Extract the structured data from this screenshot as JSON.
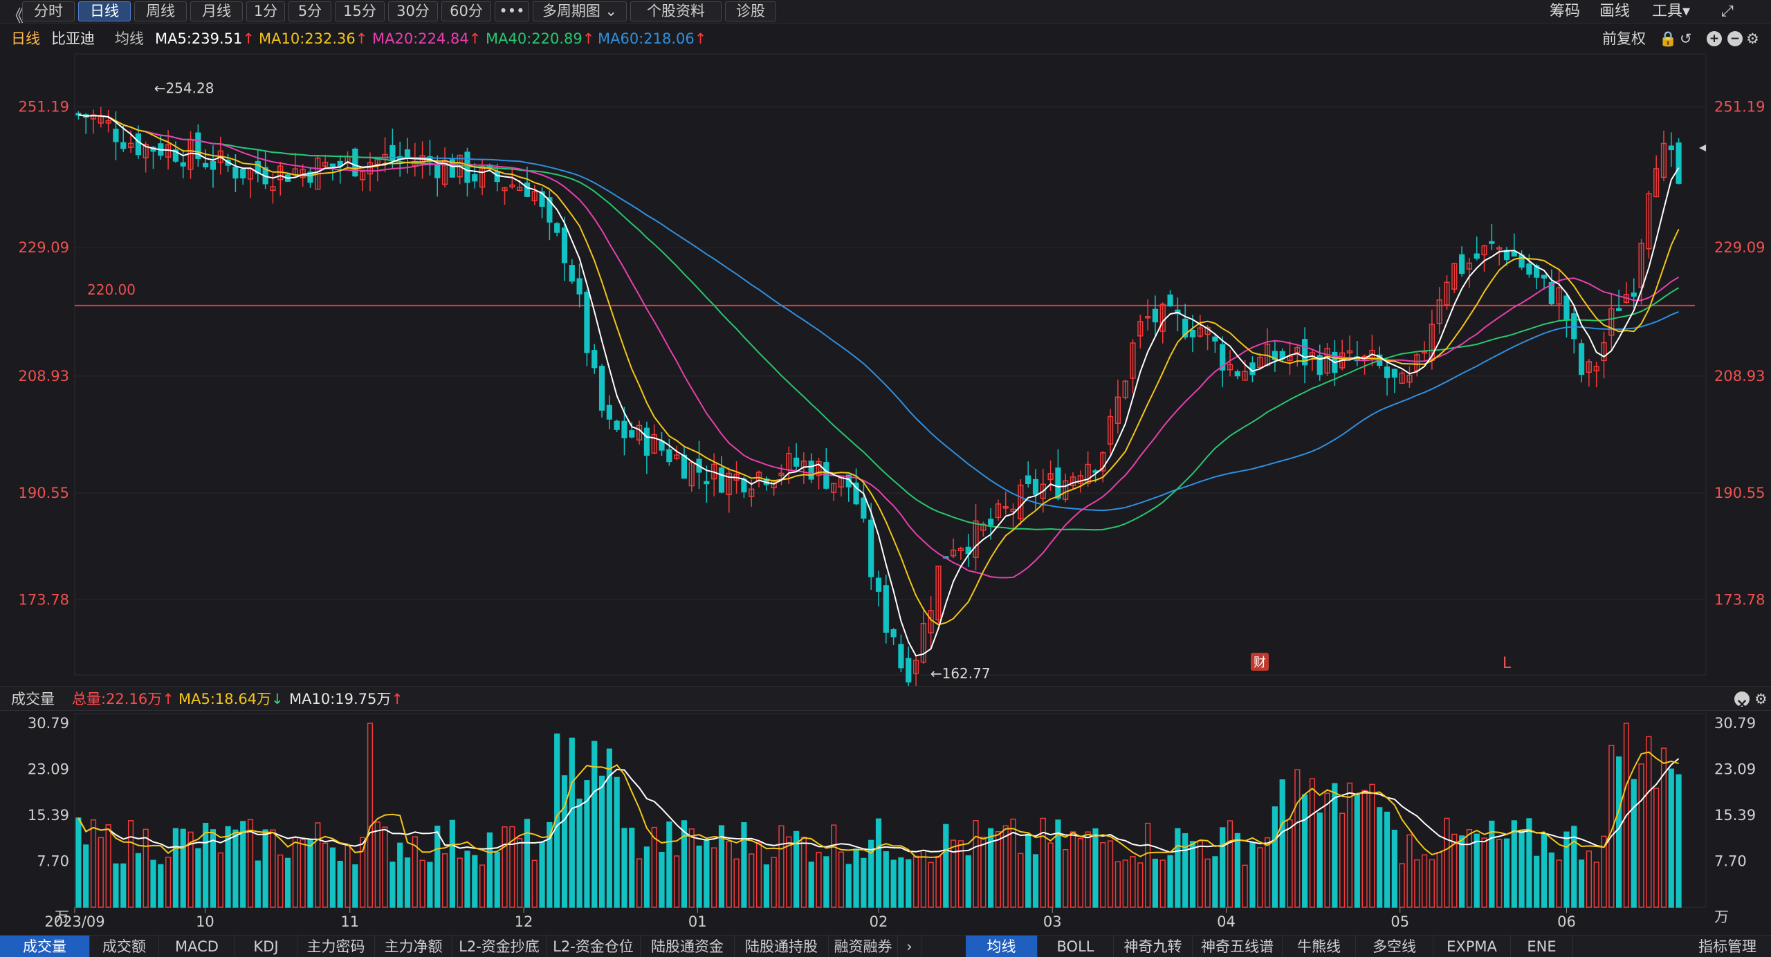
{
  "toolbar": {
    "collapse_icon": "《",
    "periods": [
      "分时",
      "日线",
      "周线",
      "月线",
      "1分",
      "5分",
      "15分",
      "30分",
      "60分",
      "•••",
      "多周期图 ⌄",
      "个股资料",
      "诊股"
    ],
    "active_period": "日线",
    "right": [
      "筹码",
      "画线",
      "工具▾",
      "⤢"
    ]
  },
  "info": {
    "period": "日线",
    "stock": "比亚迪",
    "ma_label": "均线",
    "ma5": "MA5:239.51",
    "ma10": "MA10:232.36",
    "ma20": "MA20:224.84",
    "ma40": "MA40:220.89",
    "ma60": "MA60:218.06",
    "adjust": "前复权"
  },
  "colors": {
    "up": "#f23a3a",
    "down": "#13c2c2",
    "ma5": "#ffffff",
    "ma10": "#f5c518",
    "ma20": "#e83fb0",
    "ma40": "#28c76f",
    "ma60": "#2f8fe0",
    "line220": "#e83b3b"
  },
  "price_axis": {
    "ticks": [
      "251.19",
      "229.09",
      "208.93",
      "190.55",
      "173.78"
    ]
  },
  "annotations": {
    "high": "←254.28",
    "low": "←162.77",
    "hline": "220.00",
    "fin": "财",
    "L": "L"
  },
  "volume_header": {
    "title": "成交量",
    "total": "总量:22.16万",
    "ma5": "MA5:18.64万",
    "ma10": "MA10:19.75万"
  },
  "volume_axis": {
    "ticks": [
      "30.79",
      "23.09",
      "15.39",
      "7.70",
      "万"
    ]
  },
  "time_axis": {
    "ticks": [
      "2023/09",
      "10",
      "11",
      "12",
      "01",
      "02",
      "03",
      "04",
      "05",
      "06"
    ]
  },
  "bottom_tabs_left": [
    "成交量",
    "成交额",
    "MACD",
    "KDJ",
    "主力密码",
    "主力净额",
    "L2-资金抄底",
    "L2-资金仓位",
    "陆股通资金",
    "陆股通持股",
    "融资融券"
  ],
  "bottom_tabs_right": [
    "均线",
    "BOLL",
    "神奇九转",
    "神奇五线谱",
    "牛熊线",
    "多空线",
    "EXPMA",
    "ENE"
  ],
  "indicator_mgmt": "指标管理",
  "chart_data": {
    "type": "candlestick",
    "price_ylim": [
      162,
      258
    ],
    "volume_ylim": [
      0,
      30.79
    ],
    "hline": 220.0,
    "high": 254.28,
    "low": 162.77,
    "x_month_index": {
      "2023/09": 0,
      "10": 18,
      "11": 38,
      "12": 62,
      "01": 86,
      "02": 111,
      "03": 135,
      "04": 159,
      "05": 183,
      "06": 206
    },
    "last_close": 239.2,
    "n_days": 215
  }
}
